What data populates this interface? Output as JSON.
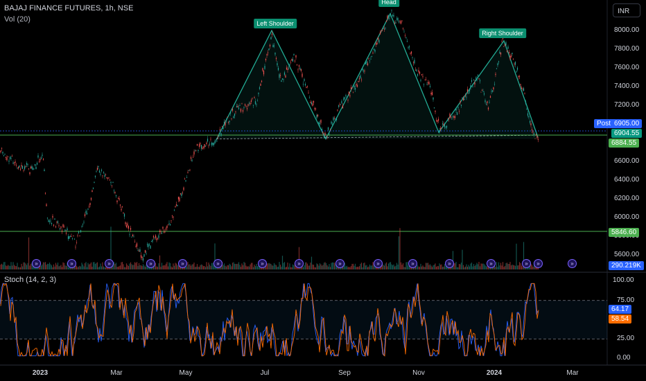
{
  "header": {
    "symbol_line": "BAJAJ FINANCE FUTURES, 1h, NSE",
    "volume_line": "Vol (20)",
    "currency": "INR"
  },
  "price_axis": {
    "ticks": [
      "8000.00",
      "7800.00",
      "7600.00",
      "7400.00",
      "7200.00",
      "6600.00",
      "6400.00",
      "6200.00",
      "6000.00",
      "5800.00",
      "5600.00"
    ],
    "tick_values": [
      8000,
      7800,
      7600,
      7400,
      7200,
      6600,
      6400,
      6200,
      6000,
      5800,
      5600
    ]
  },
  "price_badges": {
    "post_label": "Post",
    "post_value": "6905.00",
    "last": "6904.55",
    "level_high": "6884.55",
    "level_low": "5846.60",
    "volume": "290.219K"
  },
  "patterns": {
    "left_shoulder": "Left Shoulder",
    "head": "Head",
    "right_shoulder": "Right Shoulder"
  },
  "stoch": {
    "label": "Stoch (14, 2, 3)",
    "ticks": [
      "100.00",
      "75.00",
      "25.00",
      "0.00"
    ],
    "k_value": "64.17",
    "d_value": "58.54"
  },
  "time_axis": [
    "2023",
    "Mar",
    "May",
    "Jul",
    "Sep",
    "Nov",
    "2024",
    "Mar"
  ],
  "event_icon_count": 16,
  "colors": {
    "up": "#26a69a",
    "down": "#ef5350",
    "pattern": "#22ab94",
    "stoch_k": "#2962ff",
    "stoch_d": "#ff6d00",
    "level_line": "#4caf50",
    "post_badge": "#2962ff"
  },
  "chart_data": {
    "type": "line",
    "x": [
      "2023-01",
      "2023-02",
      "2023-03",
      "2023-04",
      "2023-05",
      "2023-06",
      "2023-07",
      "2023-08",
      "2023-09",
      "2023-10",
      "2023-11",
      "2023-12",
      "2024-01",
      "2024-02"
    ],
    "series": [
      {
        "values": [
          6720,
          6600,
          6000,
          5750,
          5650,
          6100,
          7980,
          7300,
          8180,
          7500,
          6950,
          7550,
          7890,
          6900
        ]
      }
    ],
    "ylim": [
      5560,
      8150
    ]
  }
}
